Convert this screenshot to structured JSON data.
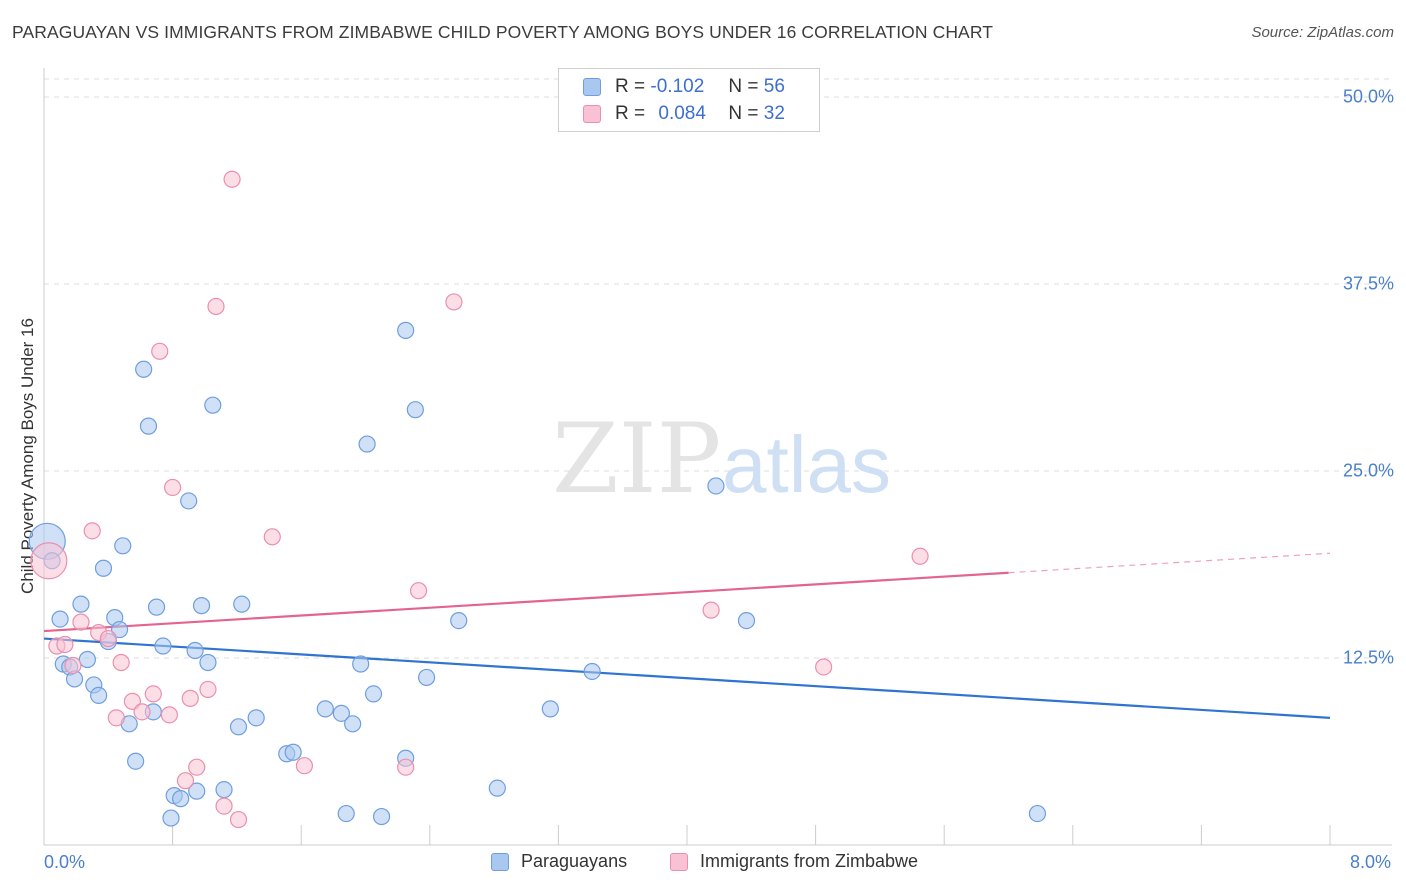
{
  "title": "PARAGUAYAN VS IMMIGRANTS FROM ZIMBABWE CHILD POVERTY AMONG BOYS UNDER 16 CORRELATION CHART",
  "source": "Source: ZipAtlas.com",
  "watermark": {
    "zip": "ZIP",
    "atlas": "atlas"
  },
  "legend": {
    "series": [
      {
        "r_label": "R =",
        "r_value": "-0.102",
        "n_label": "N =",
        "n_value": "56",
        "color": "#a9c8f0",
        "border": "#6f9ee0"
      },
      {
        "r_label": "R =",
        "r_value": "0.084",
        "n_label": "N =",
        "n_value": "32",
        "color": "#f9c2d4",
        "border": "#ea8fae"
      }
    ]
  },
  "bottom_legend": [
    "Paraguayans",
    "Immigrants from Zimbabwe"
  ],
  "chart_data": {
    "type": "scatter",
    "title": "PARAGUAYAN VS IMMIGRANTS FROM ZIMBABWE CHILD POVERTY AMONG BOYS UNDER 16 CORRELATION CHART",
    "xlabel": "",
    "ylabel": "Child Poverty Among Boys Under 16",
    "xlim": [
      0,
      8
    ],
    "ylim": [
      0,
      50
    ],
    "x_tick_labels": [
      "0.0%",
      "8.0%"
    ],
    "y_tick_values": [
      12.5,
      25.0,
      37.5,
      50.0
    ],
    "y_tick_labels": [
      "12.5%",
      "25.0%",
      "37.5%",
      "50.0%"
    ],
    "grid": true,
    "legend_position": "top-center",
    "series": [
      {
        "name": "Paraguayans",
        "color": "#a9c8f0",
        "edge_color": "#6f9ee0",
        "line_color": "#2f74d0",
        "trend": {
          "x": [
            0,
            8
          ],
          "y": [
            13.8,
            8.5
          ],
          "extend_dashed_to": 8
        },
        "points": [
          {
            "x": 0.02,
            "y": 20.3,
            "big": true
          },
          {
            "x": 0.05,
            "y": 19.0
          },
          {
            "x": 0.1,
            "y": 15.1
          },
          {
            "x": 0.12,
            "y": 12.1
          },
          {
            "x": 0.16,
            "y": 11.9
          },
          {
            "x": 0.19,
            "y": 11.1
          },
          {
            "x": 0.23,
            "y": 16.1
          },
          {
            "x": 0.27,
            "y": 12.4
          },
          {
            "x": 0.31,
            "y": 10.7
          },
          {
            "x": 0.34,
            "y": 10.0
          },
          {
            "x": 0.37,
            "y": 18.5
          },
          {
            "x": 0.4,
            "y": 13.6
          },
          {
            "x": 0.44,
            "y": 15.2
          },
          {
            "x": 0.47,
            "y": 14.4
          },
          {
            "x": 0.49,
            "y": 20.0
          },
          {
            "x": 0.53,
            "y": 8.1
          },
          {
            "x": 0.57,
            "y": 5.6
          },
          {
            "x": 0.62,
            "y": 31.8
          },
          {
            "x": 0.65,
            "y": 28.0
          },
          {
            "x": 0.68,
            "y": 8.9
          },
          {
            "x": 0.7,
            "y": 15.9
          },
          {
            "x": 0.74,
            "y": 13.3
          },
          {
            "x": 0.79,
            "y": 1.8
          },
          {
            "x": 0.81,
            "y": 3.3
          },
          {
            "x": 0.85,
            "y": 3.1
          },
          {
            "x": 0.9,
            "y": 23.0
          },
          {
            "x": 0.94,
            "y": 13.0
          },
          {
            "x": 0.95,
            "y": 3.6
          },
          {
            "x": 0.98,
            "y": 16.0
          },
          {
            "x": 1.02,
            "y": 12.2
          },
          {
            "x": 1.05,
            "y": 29.4
          },
          {
            "x": 1.12,
            "y": 3.7
          },
          {
            "x": 1.21,
            "y": 7.9
          },
          {
            "x": 1.23,
            "y": 16.1
          },
          {
            "x": 1.32,
            "y": 8.5
          },
          {
            "x": 1.51,
            "y": 6.1
          },
          {
            "x": 1.55,
            "y": 6.2
          },
          {
            "x": 1.75,
            "y": 9.1
          },
          {
            "x": 1.85,
            "y": 8.8
          },
          {
            "x": 1.88,
            "y": 2.1
          },
          {
            "x": 1.92,
            "y": 8.1
          },
          {
            "x": 1.97,
            "y": 12.1
          },
          {
            "x": 2.01,
            "y": 26.8
          },
          {
            "x": 2.05,
            "y": 10.1
          },
          {
            "x": 2.1,
            "y": 1.9
          },
          {
            "x": 2.25,
            "y": 34.4
          },
          {
            "x": 2.25,
            "y": 5.8
          },
          {
            "x": 2.31,
            "y": 29.1
          },
          {
            "x": 2.38,
            "y": 11.2
          },
          {
            "x": 2.58,
            "y": 15.0
          },
          {
            "x": 2.82,
            "y": 3.8
          },
          {
            "x": 3.15,
            "y": 9.1
          },
          {
            "x": 3.41,
            "y": 11.6
          },
          {
            "x": 4.18,
            "y": 24.0
          },
          {
            "x": 4.37,
            "y": 15.0
          },
          {
            "x": 6.18,
            "y": 2.1
          }
        ]
      },
      {
        "name": "Immigrants from Zimbabwe",
        "color": "#f9c2d4",
        "edge_color": "#ea8fae",
        "line_color": "#e2648f",
        "trend": {
          "x": [
            0,
            6
          ],
          "y": [
            14.3,
            18.2
          ],
          "dashed_x": [
            6,
            8
          ],
          "dashed_y": [
            18.2,
            19.5
          ]
        },
        "points": [
          {
            "x": 0.03,
            "y": 19.0,
            "big": true
          },
          {
            "x": 0.08,
            "y": 13.3
          },
          {
            "x": 0.13,
            "y": 13.4
          },
          {
            "x": 0.18,
            "y": 12.0
          },
          {
            "x": 0.23,
            "y": 14.9
          },
          {
            "x": 0.3,
            "y": 21.0
          },
          {
            "x": 0.34,
            "y": 14.2
          },
          {
            "x": 0.4,
            "y": 13.8
          },
          {
            "x": 0.45,
            "y": 8.5
          },
          {
            "x": 0.48,
            "y": 12.2
          },
          {
            "x": 0.55,
            "y": 9.6
          },
          {
            "x": 0.61,
            "y": 8.9
          },
          {
            "x": 0.68,
            "y": 10.1
          },
          {
            "x": 0.72,
            "y": 33.0
          },
          {
            "x": 0.78,
            "y": 8.7
          },
          {
            "x": 0.8,
            "y": 23.9
          },
          {
            "x": 0.88,
            "y": 4.3
          },
          {
            "x": 0.91,
            "y": 9.8
          },
          {
            "x": 0.95,
            "y": 5.2
          },
          {
            "x": 1.02,
            "y": 10.4
          },
          {
            "x": 1.07,
            "y": 36.0
          },
          {
            "x": 1.12,
            "y": 2.6
          },
          {
            "x": 1.17,
            "y": 44.5
          },
          {
            "x": 1.21,
            "y": 1.7
          },
          {
            "x": 1.42,
            "y": 20.6
          },
          {
            "x": 1.62,
            "y": 5.3
          },
          {
            "x": 2.25,
            "y": 5.2
          },
          {
            "x": 2.33,
            "y": 17.0
          },
          {
            "x": 2.55,
            "y": 36.3
          },
          {
            "x": 4.15,
            "y": 15.7
          },
          {
            "x": 4.85,
            "y": 11.9
          },
          {
            "x": 5.45,
            "y": 19.3
          }
        ]
      }
    ]
  }
}
